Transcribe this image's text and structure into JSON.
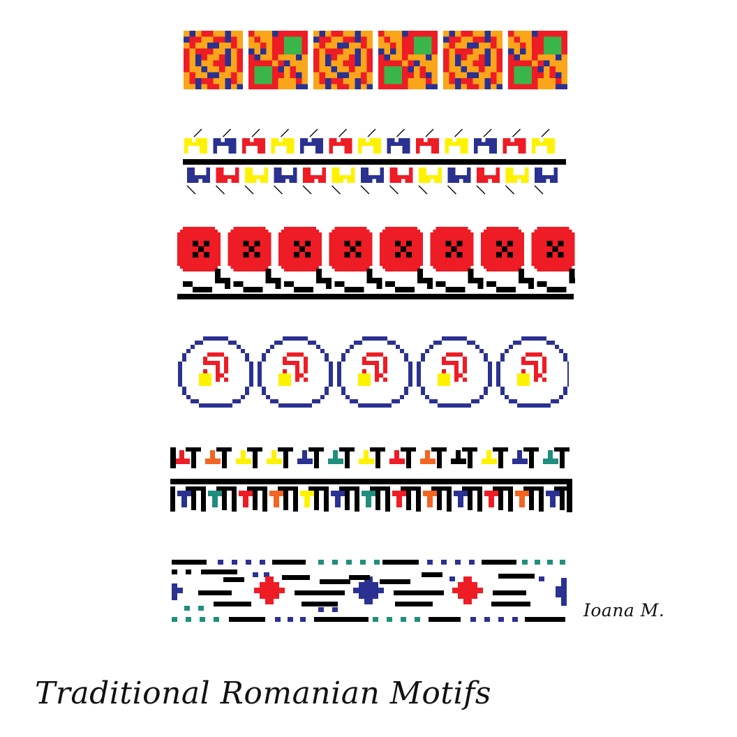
{
  "title": "Traditional Romanian Motifs",
  "signature": "Ioana M.",
  "palette": {
    "red": "#ee1c25",
    "orange": "#fba51a",
    "blue": "#2b3191",
    "green": "#3ab54a",
    "yellow": "#fff200",
    "black": "#000000",
    "orange_red": "#f26522",
    "teal": "#1f8e7d"
  },
  "bands": [
    {
      "motif": "checkered-flower-squares",
      "repeats": 6
    },
    {
      "motif": "yellow-red-blue-hooks-with-black-bar",
      "repeats": 13
    },
    {
      "motif": "red-rosettes-with-black-meander",
      "repeats": 8
    },
    {
      "motif": "blue-circles-with-red-yellow-hooks",
      "repeats": 5
    },
    {
      "motif": "black-t-ladder-with-colored-t-shapes",
      "repeats": 13
    },
    {
      "motif": "dashed-lines-with-diamonds",
      "repeats": 3
    }
  ]
}
